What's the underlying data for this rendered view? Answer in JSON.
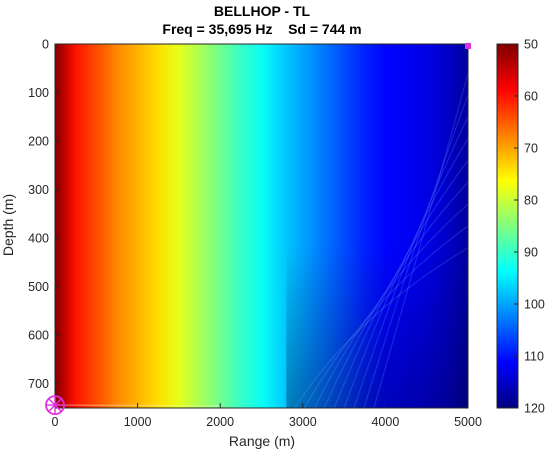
{
  "chart_data": {
    "type": "heatmap",
    "title": "BELLHOP - TL",
    "subtitle": "Freq = 35,695 Hz    Sd = 744 m",
    "xlabel": "Range (m)",
    "ylabel": "Depth (m)",
    "xlim": [
      0,
      5000
    ],
    "ylim": [
      0,
      750
    ],
    "y_reversed": true,
    "xticks": [
      0,
      1000,
      2000,
      3000,
      4000,
      5000
    ],
    "yticks": [
      0,
      100,
      200,
      300,
      400,
      500,
      600,
      700
    ],
    "colorbar": {
      "colormap": "jet-reversed",
      "range": [
        50,
        120
      ],
      "ticks": [
        50,
        60,
        70,
        80,
        90,
        100,
        110,
        120
      ]
    },
    "tl_profile": {
      "range_m": [
        0,
        100,
        250,
        500,
        750,
        1000,
        1250,
        1500,
        1750,
        2000,
        2250,
        2500,
        2750,
        3000,
        3250,
        3500,
        3750,
        4000,
        4250,
        4500,
        4750,
        5000
      ],
      "tl_db": [
        49,
        54,
        60,
        64,
        68,
        71,
        74,
        78,
        82,
        86,
        90,
        93,
        97,
        100,
        103,
        106,
        109,
        111,
        112,
        113,
        115,
        118
      ]
    },
    "markers": [
      {
        "name": "source",
        "range": 0,
        "depth": 744,
        "color": "#e02ee0"
      },
      {
        "name": "receiver",
        "range": 5000,
        "depth": 0,
        "color": "#e02ee0"
      }
    ]
  }
}
